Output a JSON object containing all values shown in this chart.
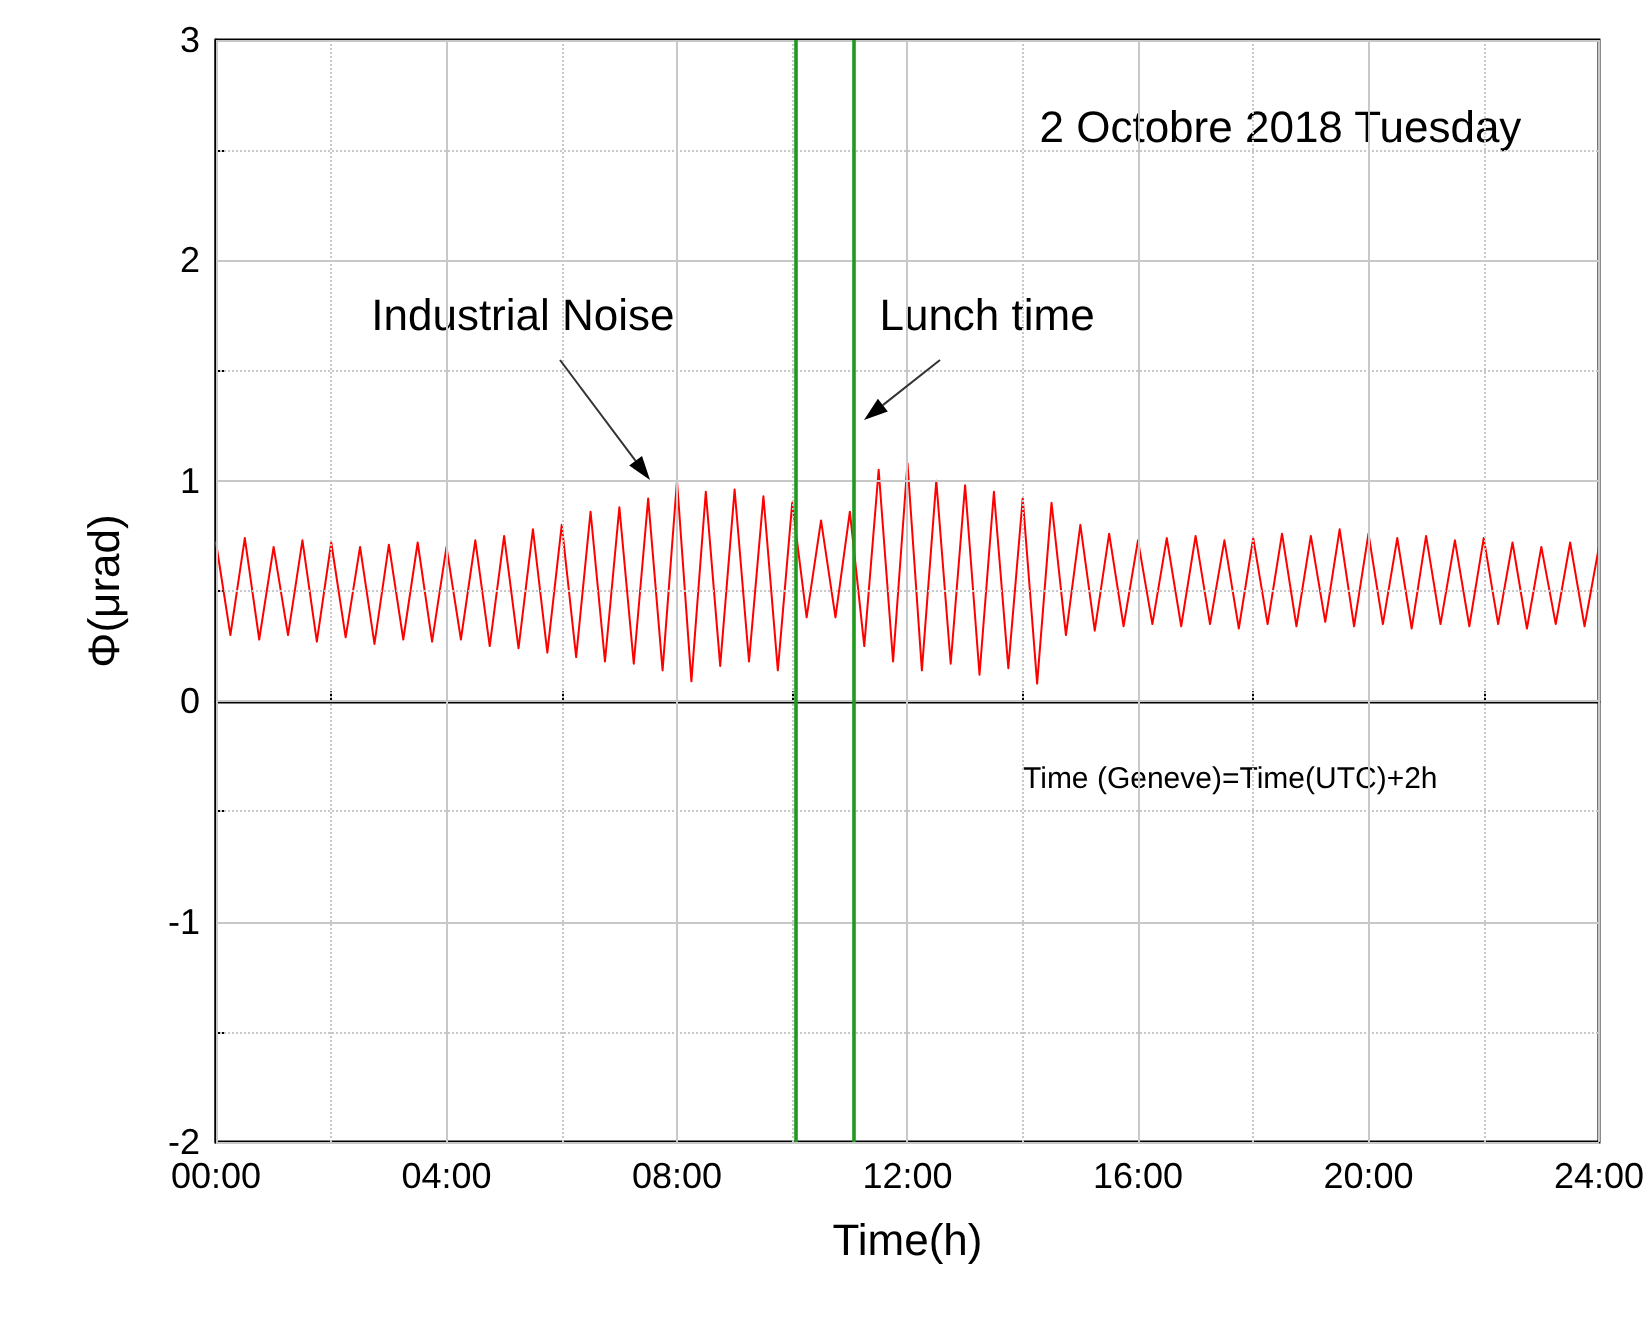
{
  "chart_data": {
    "type": "line",
    "xlabel": "Time(h)",
    "ylabel": "Φ(μrad)",
    "x": [
      0,
      0.25,
      0.5,
      0.75,
      1,
      1.25,
      1.5,
      1.75,
      2,
      2.25,
      2.5,
      2.75,
      3,
      3.25,
      3.5,
      3.75,
      4,
      4.25,
      4.5,
      4.75,
      5,
      5.25,
      5.5,
      5.75,
      6,
      6.25,
      6.5,
      6.75,
      7,
      7.25,
      7.5,
      7.75,
      8,
      8.25,
      8.5,
      8.75,
      9,
      9.25,
      9.5,
      9.75,
      10,
      10.25,
      10.5,
      10.75,
      11,
      11.25,
      11.5,
      11.75,
      12,
      12.25,
      12.5,
      12.75,
      13,
      13.25,
      13.5,
      13.75,
      14,
      14.25,
      14.5,
      14.75,
      15,
      15.25,
      15.5,
      15.75,
      16,
      16.25,
      16.5,
      16.75,
      17,
      17.25,
      17.5,
      17.75,
      18,
      18.25,
      18.5,
      18.75,
      19,
      19.25,
      19.5,
      19.75,
      20,
      20.25,
      20.5,
      20.75,
      21,
      21.25,
      21.5,
      21.75,
      22,
      22.25,
      22.5,
      22.75,
      23,
      23.25,
      23.5,
      23.75,
      24
    ],
    "series": [
      {
        "color": "#ff0000",
        "values": [
          0.72,
          0.3,
          0.74,
          0.28,
          0.7,
          0.3,
          0.73,
          0.27,
          0.72,
          0.29,
          0.7,
          0.26,
          0.71,
          0.28,
          0.72,
          0.27,
          0.7,
          0.28,
          0.73,
          0.25,
          0.75,
          0.24,
          0.78,
          0.22,
          0.8,
          0.2,
          0.86,
          0.18,
          0.88,
          0.17,
          0.92,
          0.14,
          1.0,
          0.09,
          0.95,
          0.16,
          0.96,
          0.18,
          0.93,
          0.14,
          0.9,
          0.38,
          0.82,
          0.38,
          0.86,
          0.25,
          1.05,
          0.18,
          1.08,
          0.14,
          1.0,
          0.17,
          0.98,
          0.12,
          0.95,
          0.15,
          0.92,
          0.08,
          0.9,
          0.3,
          0.8,
          0.32,
          0.76,
          0.34,
          0.73,
          0.35,
          0.74,
          0.34,
          0.75,
          0.35,
          0.73,
          0.33,
          0.74,
          0.35,
          0.76,
          0.34,
          0.75,
          0.36,
          0.78,
          0.34,
          0.76,
          0.35,
          0.74,
          0.33,
          0.75,
          0.35,
          0.73,
          0.34,
          0.74,
          0.35,
          0.72,
          0.33,
          0.7,
          0.35,
          0.72,
          0.34,
          0.7
        ]
      }
    ],
    "xlim": [
      0,
      24
    ],
    "xticks": [
      {
        "value": 0,
        "label": "00:00"
      },
      {
        "value": 2,
        "label": null
      },
      {
        "value": 4,
        "label": "04:00"
      },
      {
        "value": 6,
        "label": null
      },
      {
        "value": 8,
        "label": "08:00"
      },
      {
        "value": 10,
        "label": null
      },
      {
        "value": 12,
        "label": "12:00"
      },
      {
        "value": 14,
        "label": null
      },
      {
        "value": 16,
        "label": "16:00"
      },
      {
        "value": 18,
        "label": null
      },
      {
        "value": 20,
        "label": "20:00"
      },
      {
        "value": 22,
        "label": null
      },
      {
        "value": 24,
        "label": "24:00"
      }
    ],
    "ylim": [
      -2,
      3
    ],
    "yticks": [
      -2,
      {
        "value": -1.5,
        "label": null
      },
      -1,
      {
        "value": -0.5,
        "label": null
      },
      0,
      {
        "value": 0.5,
        "label": null
      },
      1,
      {
        "value": 1.5,
        "label": null
      },
      2,
      {
        "value": 2.5,
        "label": null
      },
      3
    ],
    "grid": true,
    "marker": "none",
    "line_style": "solid",
    "ref_lines": [
      {
        "axis": "x",
        "value": 10.05,
        "color": "#1f9a1f"
      },
      {
        "axis": "x",
        "value": 11.05,
        "color": "#1f9a1f"
      }
    ],
    "annotations": [
      "2 Octobre 2018 Tuesday",
      "Industrial Noise",
      "Lunch time",
      "Time (Geneve)=Time(UTC)+2h"
    ]
  }
}
